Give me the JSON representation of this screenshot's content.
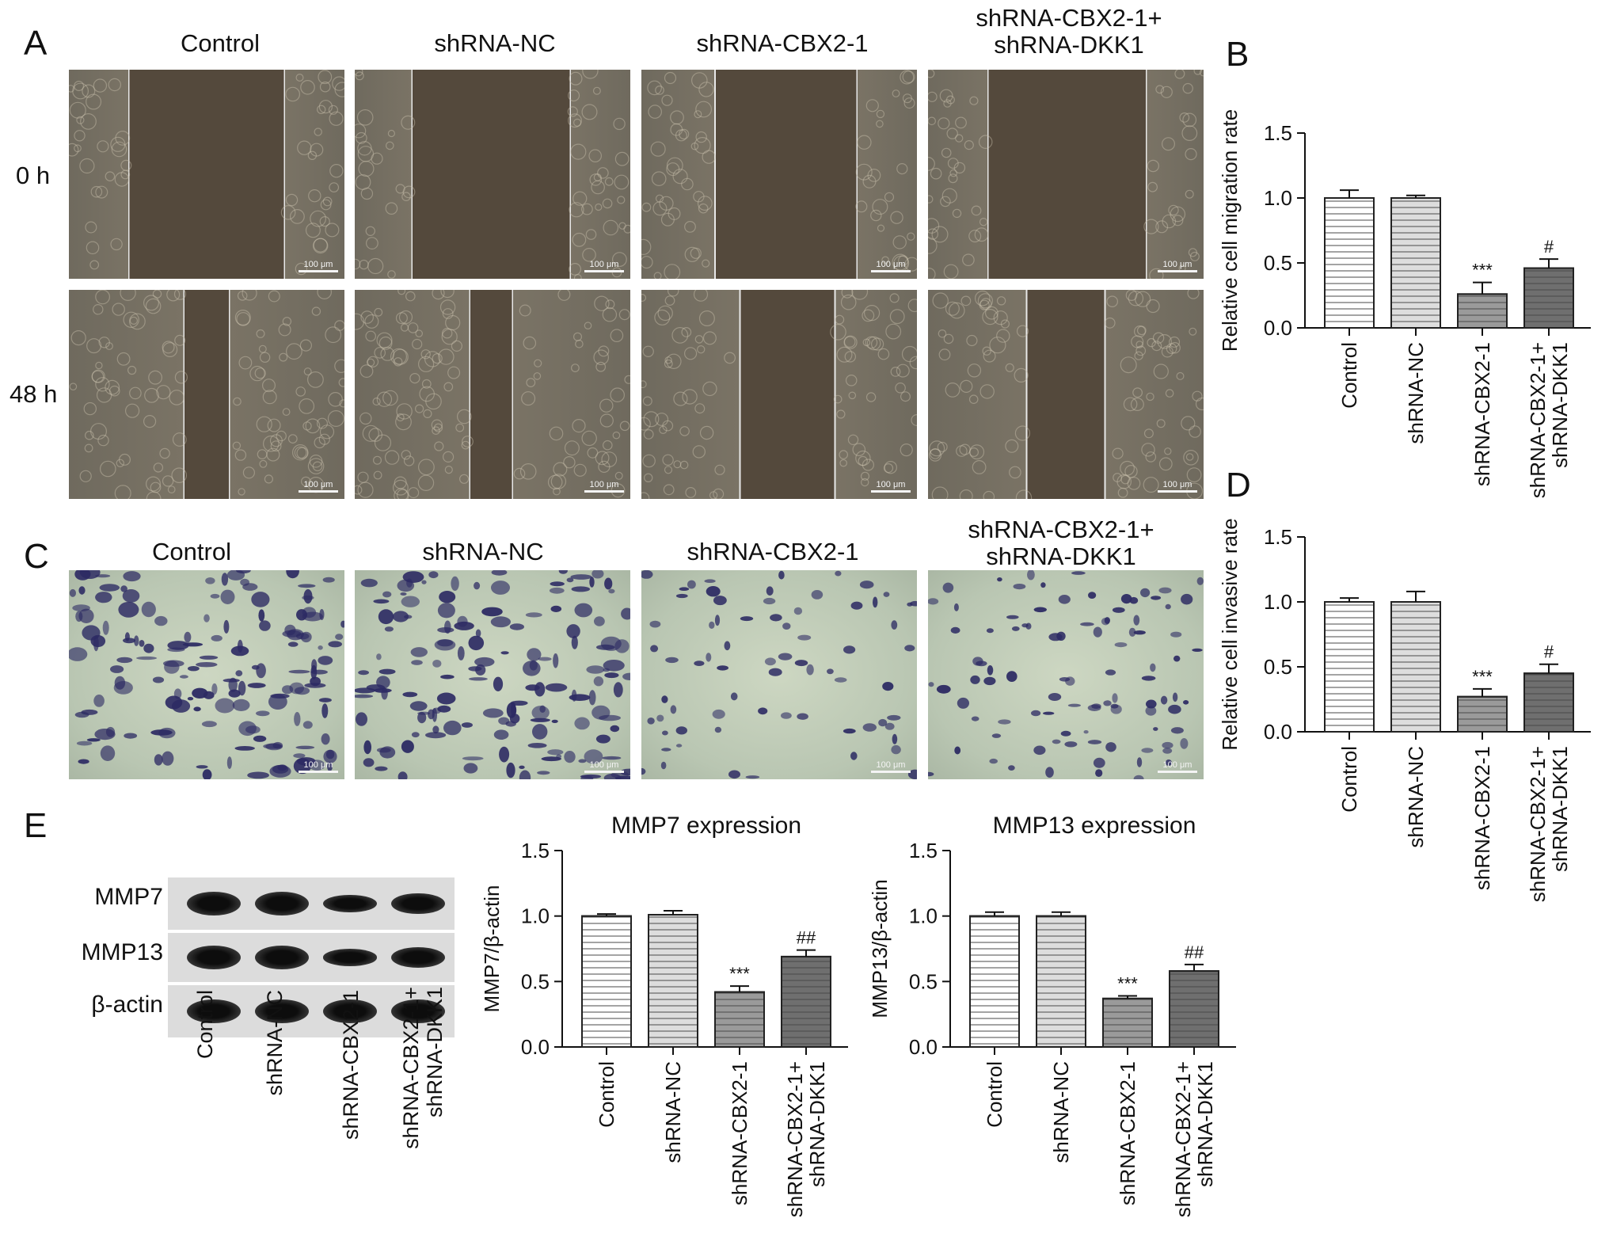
{
  "panels": {
    "A": "A",
    "B": "B",
    "C": "C",
    "D": "D",
    "E": "E"
  },
  "groups": [
    "Control",
    "shRNA-NC",
    "shRNA-CBX2-1",
    "shRNA-CBX2-1+\nshRNA-DKK1"
  ],
  "panel_a": {
    "col_headers": [
      "Control",
      "shRNA-NC",
      "shRNA-CBX2-1",
      "shRNA-CBX2-1+\nshRNA-DKK1"
    ],
    "rows": [
      "0 h",
      "48 h"
    ],
    "scale": "100 μm"
  },
  "panel_c": {
    "col_headers": [
      "Control",
      "shRNA-NC",
      "shRNA-CBX2-1",
      "shRNA-CBX2-1+\nshRNA-DKK1"
    ],
    "scale": "100 μm"
  },
  "panel_e_blot": {
    "bands": [
      "MMP7",
      "MMP13",
      "β-actin"
    ],
    "lane_labels": [
      "Control",
      "shRNA-NC",
      "shRNA-CBX2-1",
      "shRNA-CBX2-1+\nshRNA-DKK1"
    ]
  },
  "colors": {
    "bar1": "#ffffff",
    "bar2": "#dddddd",
    "bar3": "#9a9a9a",
    "bar4": "#6f6f6f",
    "stroke": "#222222"
  },
  "chart_data": [
    {
      "id": "B",
      "type": "bar",
      "title": "",
      "xlabel": "",
      "ylabel": "Relative cell migration rate",
      "categories": [
        "Control",
        "shRNA-NC",
        "shRNA-CBX2-1",
        "shRNA-CBX2-1+\nshRNA-DKK1"
      ],
      "values": [
        1.0,
        1.0,
        0.26,
        0.46
      ],
      "errors": [
        0.06,
        0.02,
        0.09,
        0.07
      ],
      "annotations": [
        "",
        "",
        "***",
        "#"
      ],
      "ylim": [
        0,
        1.5
      ],
      "yticks": [
        "0.0",
        "0.5",
        "1.0",
        "1.5"
      ]
    },
    {
      "id": "D",
      "type": "bar",
      "title": "",
      "xlabel": "",
      "ylabel": "Relative cell invasive rate",
      "categories": [
        "Control",
        "shRNA-NC",
        "shRNA-CBX2-1",
        "shRNA-CBX2-1+\nshRNA-DKK1"
      ],
      "values": [
        1.0,
        1.0,
        0.27,
        0.45
      ],
      "errors": [
        0.03,
        0.08,
        0.06,
        0.07
      ],
      "annotations": [
        "",
        "",
        "***",
        "#"
      ],
      "ylim": [
        0,
        1.5
      ],
      "yticks": [
        "0.0",
        "0.5",
        "1.0",
        "1.5"
      ]
    },
    {
      "id": "E-MMP7",
      "type": "bar",
      "title": "MMP7 expression",
      "xlabel": "",
      "ylabel": "MMP7/β-actin",
      "categories": [
        "Control",
        "shRNA-NC",
        "shRNA-CBX2-1",
        "shRNA-CBX2-1+\nshRNA-DKK1"
      ],
      "values": [
        1.0,
        1.01,
        0.42,
        0.69
      ],
      "errors": [
        0.015,
        0.03,
        0.045,
        0.05
      ],
      "annotations": [
        "",
        "",
        "***",
        "##"
      ],
      "ylim": [
        0,
        1.5
      ],
      "yticks": [
        "0.0",
        "0.5",
        "1.0",
        "1.5"
      ]
    },
    {
      "id": "E-MMP13",
      "type": "bar",
      "title": "MMP13 expression",
      "xlabel": "",
      "ylabel": "MMP13/β-actin",
      "categories": [
        "Control",
        "shRNA-NC",
        "shRNA-CBX2-1",
        "shRNA-CBX2-1+\nshRNA-DKK1"
      ],
      "values": [
        1.0,
        1.0,
        0.37,
        0.58
      ],
      "errors": [
        0.03,
        0.03,
        0.02,
        0.05
      ],
      "annotations": [
        "",
        "",
        "***",
        "##"
      ],
      "ylim": [
        0,
        1.5
      ],
      "yticks": [
        "0.0",
        "0.5",
        "1.0",
        "1.5"
      ]
    }
  ]
}
